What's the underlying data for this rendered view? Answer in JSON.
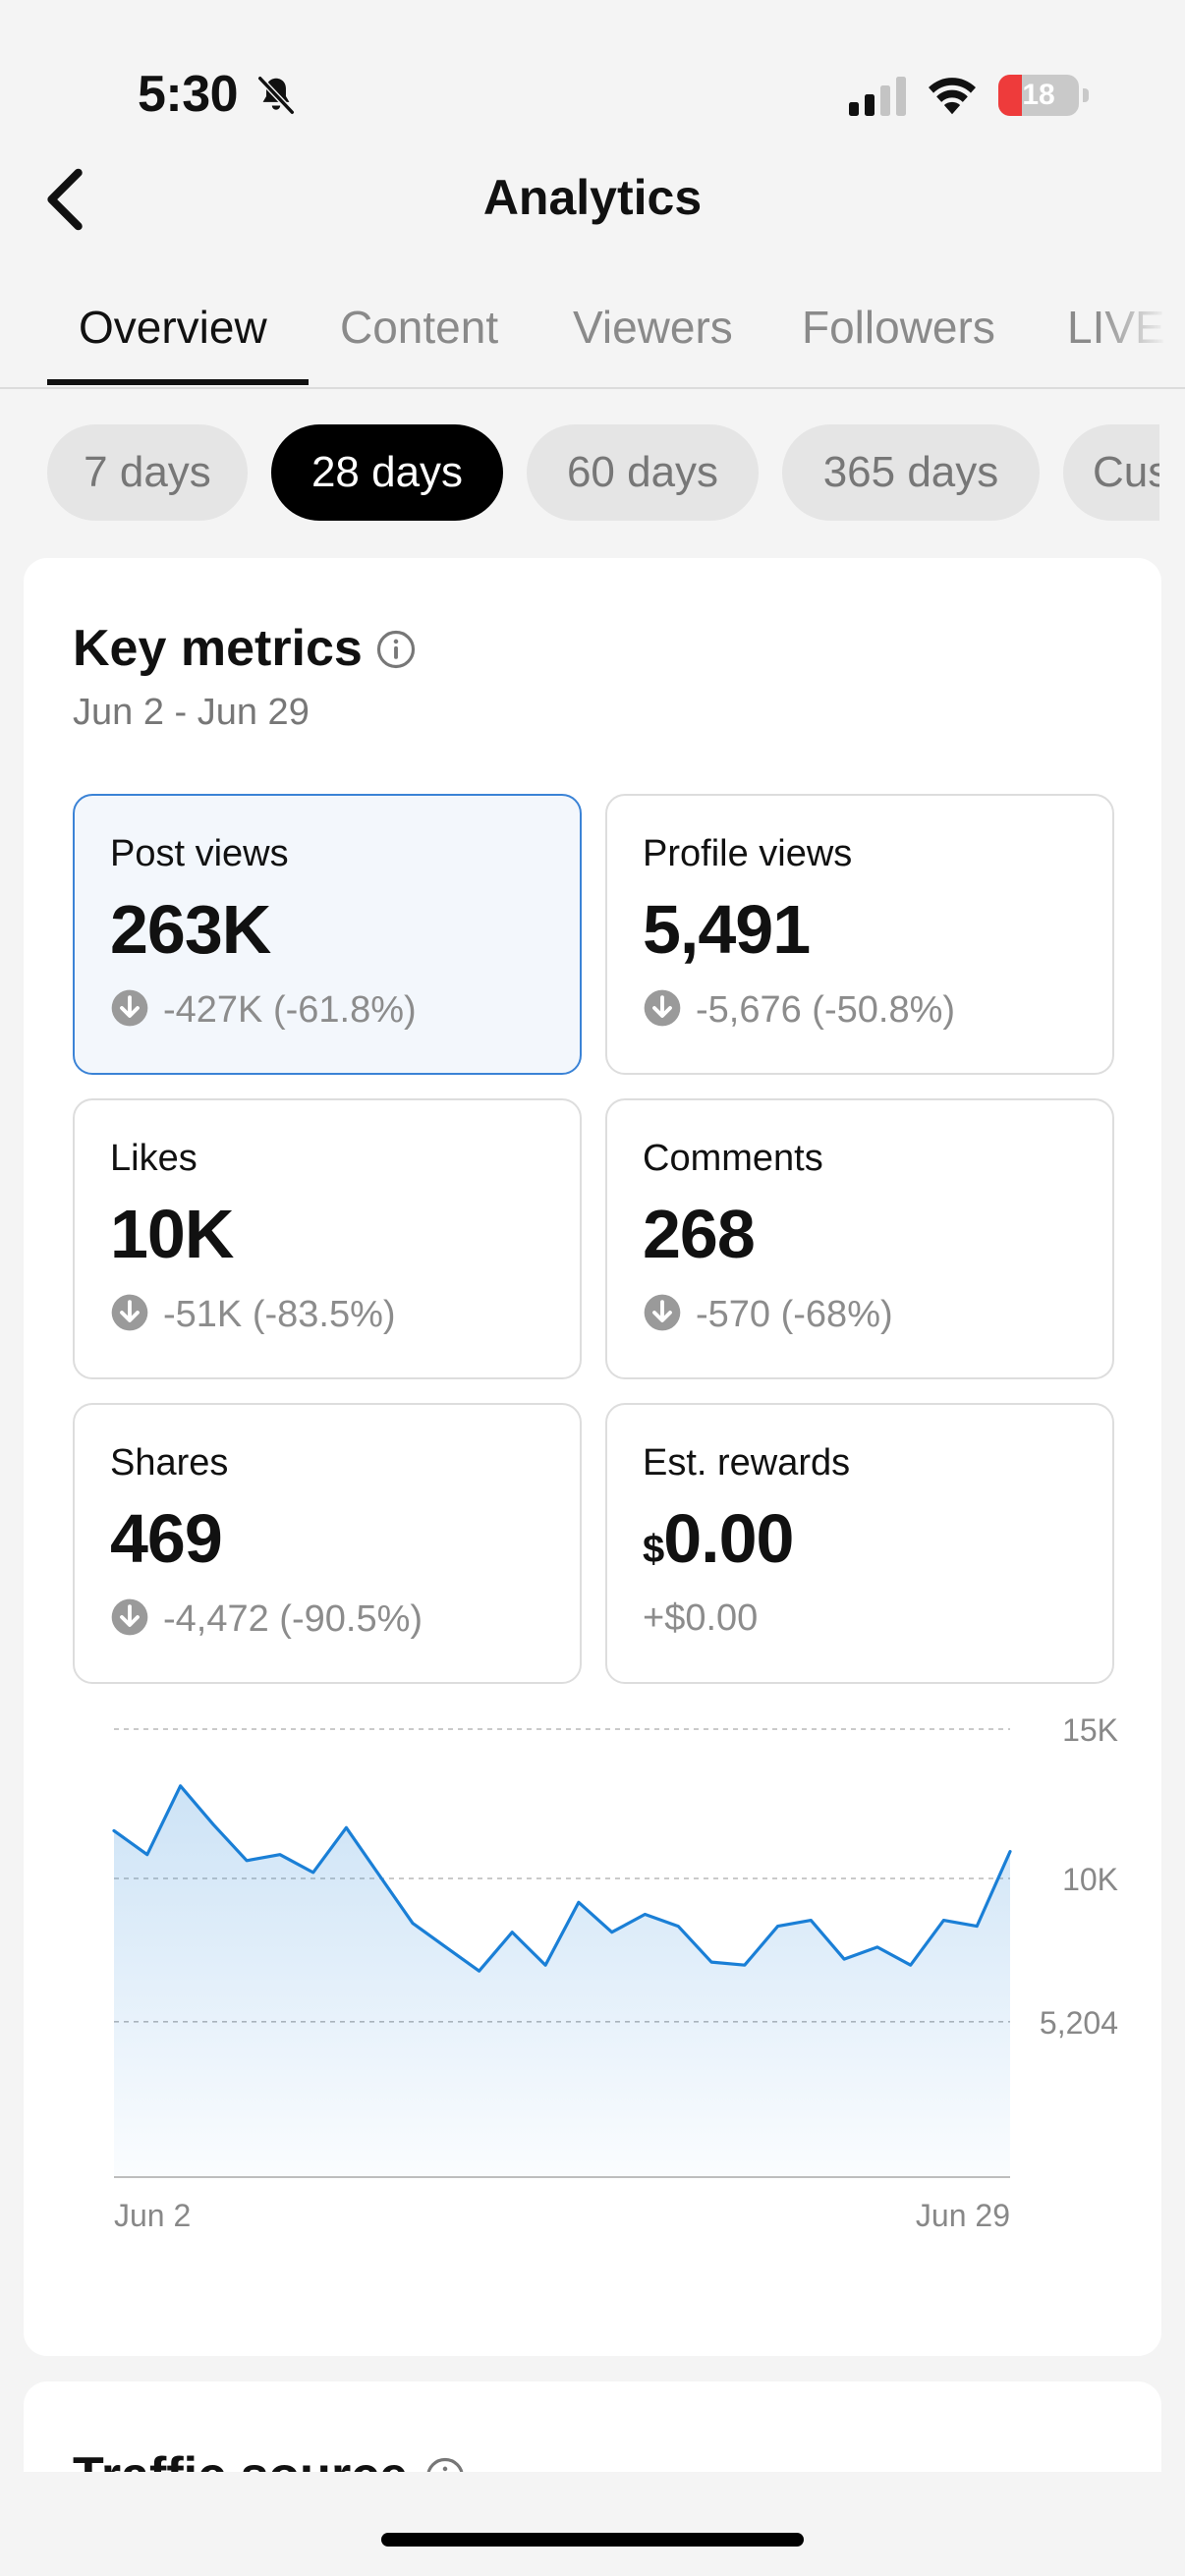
{
  "status_bar": {
    "time": "5:30",
    "battery": "18",
    "icons": [
      "bell-slash-icon",
      "cellular-signal-icon",
      "wifi-icon",
      "battery-icon"
    ]
  },
  "header": {
    "title": "Analytics",
    "back_icon": "chevron-left-icon"
  },
  "tabs": [
    {
      "label": "Overview",
      "active": true
    },
    {
      "label": "Content",
      "active": false
    },
    {
      "label": "Viewers",
      "active": false
    },
    {
      "label": "Followers",
      "active": false
    },
    {
      "label": "LIVE",
      "active": false
    }
  ],
  "ranges": [
    {
      "label": "7 days",
      "active": false
    },
    {
      "label": "28 days",
      "active": true
    },
    {
      "label": "60 days",
      "active": false
    },
    {
      "label": "365 days",
      "active": false
    },
    {
      "label": "Cus",
      "active": false
    }
  ],
  "key_metrics": {
    "title": "Key metrics",
    "date_range": "Jun 2 - Jun 29",
    "metrics": [
      {
        "label": "Post views",
        "value": "263K",
        "delta": "-427K (-61.8%)",
        "selected": true
      },
      {
        "label": "Profile views",
        "value": "5,491",
        "delta": "-5,676 (-50.8%)",
        "selected": false
      },
      {
        "label": "Likes",
        "value": "10K",
        "delta": "-51K (-83.5%)",
        "selected": false
      },
      {
        "label": "Comments",
        "value": "268",
        "delta": "-570 (-68%)",
        "selected": false
      },
      {
        "label": "Shares",
        "value": "469",
        "delta": "-4,472 (-90.5%)",
        "selected": false
      },
      {
        "label": "Est. rewards",
        "currency": "$",
        "value": "0.00",
        "delta": "+$0.00",
        "selected": false
      }
    ]
  },
  "chart_data": {
    "type": "area",
    "x_start_label": "Jun 2",
    "x_end_label": "Jun 29",
    "y_tick_labels": [
      "15K",
      "10K",
      "5,204"
    ],
    "y_ticks": [
      15000,
      10000,
      5204
    ],
    "ylim": [
      0,
      15000
    ],
    "grid": true,
    "color": "#1a7fd6",
    "values": [
      11600,
      10800,
      13100,
      11800,
      10600,
      10800,
      10200,
      11700,
      10100,
      8500,
      7700,
      6900,
      8200,
      7100,
      9200,
      8200,
      8800,
      8400,
      7200,
      7100,
      8400,
      8600,
      7300,
      7700,
      7100,
      8600,
      8400,
      10900
    ]
  },
  "traffic_source": {
    "title": "Traffic source"
  },
  "colors": {
    "accent": "#1a7fd6",
    "selected_border": "#3b83d6",
    "background": "#f4f4f4",
    "muted_text": "#8c8c8c"
  }
}
